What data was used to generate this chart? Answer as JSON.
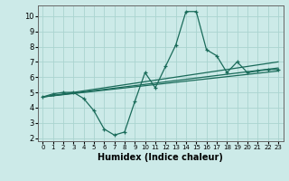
{
  "xlabel": "Humidex (Indice chaleur)",
  "xlim": [
    -0.5,
    23.5
  ],
  "ylim": [
    1.8,
    10.7
  ],
  "yticks": [
    2,
    3,
    4,
    5,
    6,
    7,
    8,
    9,
    10
  ],
  "xticks": [
    0,
    1,
    2,
    3,
    4,
    5,
    6,
    7,
    8,
    9,
    10,
    11,
    12,
    13,
    14,
    15,
    16,
    17,
    18,
    19,
    20,
    21,
    22,
    23
  ],
  "bg_color": "#cceae8",
  "line_color": "#1a6b5a",
  "grid_color": "#aad4d0",
  "series": [
    {
      "x": [
        0,
        1,
        2,
        3,
        4,
        5,
        6,
        7,
        8,
        9,
        10,
        11,
        12,
        13,
        14,
        15,
        16,
        17,
        18,
        19,
        20,
        21,
        22,
        23
      ],
      "y": [
        4.7,
        4.9,
        5.0,
        5.0,
        4.6,
        3.8,
        2.6,
        2.2,
        2.4,
        4.4,
        6.3,
        5.3,
        6.7,
        8.1,
        10.3,
        10.3,
        7.8,
        7.4,
        6.3,
        7.0,
        6.3,
        6.4,
        6.5,
        6.5
      ]
    },
    {
      "x": [
        0,
        23
      ],
      "y": [
        4.7,
        6.4
      ]
    },
    {
      "x": [
        0,
        23
      ],
      "y": [
        4.7,
        6.6
      ]
    },
    {
      "x": [
        0,
        23
      ],
      "y": [
        4.7,
        7.0
      ]
    }
  ]
}
